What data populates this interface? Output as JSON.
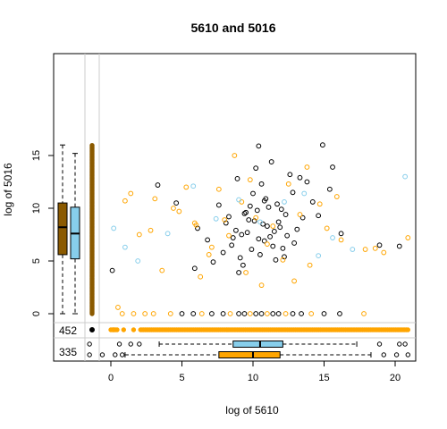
{
  "chart_data": {
    "type": "scatter",
    "title": "5610  and 5016",
    "xlabel": "log of 5610",
    "ylabel": "log of 5016",
    "xlim": [
      -3.7,
      21.5
    ],
    "ylim": [
      -0.6,
      16.6
    ],
    "x_ticks": [
      0,
      5,
      10,
      15,
      20
    ],
    "y_ticks": [
      0,
      5,
      10,
      15
    ],
    "grid": false,
    "missing_counts": [
      {
        "value": "452",
        "color": "#FFA500"
      },
      {
        "value": "335",
        "color": "#333333"
      }
    ],
    "series": [
      {
        "color": "#000000",
        "x": [
          9.2,
          10.1,
          10.8,
          11.5,
          12.3,
          8.5,
          9.8,
          10.4,
          11.0,
          12.8,
          13.5,
          7.9,
          9.4,
          10.6,
          11.7,
          12.1,
          8.8,
          9.9,
          10.3,
          11.2,
          13.1,
          14.2,
          7.2,
          8.1,
          9.6,
          10.9,
          11.9,
          12.6,
          9.1,
          10.0,
          10.7,
          11.4,
          8.3,
          9.3,
          10.2,
          11.1,
          12.4,
          13.8,
          15.4,
          6.8,
          8.9,
          9.7,
          10.5,
          11.3,
          12.0,
          12.9,
          14.6,
          7.6,
          9.0,
          10.4,
          11.6,
          16.2,
          18.9,
          5.9,
          3.3,
          4.6,
          6.1,
          20.3,
          0.1,
          14.9,
          15.6,
          11.8,
          9.5,
          8.6,
          10.8,
          12.2,
          13.3
        ],
        "y": [
          7.5,
          8.8,
          6.9,
          7.8,
          9.4,
          6.5,
          10.2,
          7.1,
          8.3,
          11.5,
          9.1,
          5.8,
          9.5,
          12.3,
          10.4,
          6.2,
          7.9,
          6.1,
          9.8,
          7.3,
          8.0,
          10.6,
          4.9,
          8.6,
          7.7,
          10.9,
          8.2,
          13.2,
          5.3,
          11.4,
          8.5,
          6.4,
          9.2,
          4.6,
          13.8,
          10.1,
          7.4,
          12.5,
          11.8,
          7.0,
          12.8,
          8.9,
          5.6,
          14.4,
          9.9,
          6.7,
          9.3,
          10.3,
          3.9,
          15.9,
          5.1,
          7.6,
          6.5,
          4.3,
          12.2,
          10.5,
          8.1,
          6.4,
          4.1,
          16.0,
          13.9,
          8.7,
          9.6,
          7.2,
          10.7,
          5.4,
          12.9
        ]
      },
      {
        "color": "#FFA500",
        "x": [
          5.3,
          7.1,
          9.2,
          11.4,
          14.0,
          3.1,
          6.3,
          8.0,
          12.5,
          16.2,
          2.0,
          4.4,
          10.6,
          13.3,
          17.9,
          1.4,
          6.9,
          9.8,
          15.2,
          20.9,
          3.6,
          5.9,
          8.7,
          12.1,
          14.7,
          0.5,
          2.8,
          7.6,
          11.0,
          18.6,
          4.8,
          9.5,
          13.8,
          19.2,
          6.0,
          10.2,
          15.9,
          1.0,
          8.3,
          12.9
        ],
        "y": [
          12.0,
          6.3,
          10.6,
          8.3,
          4.6,
          10.9,
          3.5,
          8.9,
          12.3,
          7.0,
          7.5,
          10.0,
          2.7,
          9.4,
          6.1,
          11.4,
          5.6,
          12.7,
          8.1,
          7.2,
          4.1,
          8.6,
          15.0,
          5.1,
          10.4,
          0.6,
          7.9,
          11.8,
          6.6,
          6.2,
          9.7,
          3.9,
          13.9,
          5.8,
          8.4,
          9.1,
          11.1,
          10.7,
          7.4,
          3.1
        ]
      },
      {
        "color": "#87CEEB",
        "x": [
          0.2,
          1.0,
          1.9,
          5.8,
          7.4,
          9.0,
          10.5,
          12.2,
          13.6,
          15.6,
          17.0,
          20.7,
          4.0,
          14.6
        ],
        "y": [
          8.1,
          6.3,
          5.0,
          12.1,
          9.0,
          10.8,
          8.7,
          10.6,
          11.4,
          7.2,
          6.1,
          13.0,
          7.6,
          5.5
        ]
      }
    ],
    "x_missing_strip": {
      "orange_y": [
        2.0,
        4.9,
        6.1,
        7.4,
        8.1,
        9.0,
        9.9,
        10.6,
        11.3,
        12.0,
        12.9,
        13.7,
        14.6,
        15.2,
        15.9
      ],
      "summary": "dense brown points along the left strip from 0 to 16"
    },
    "boxplots": [
      {
        "axis": "y",
        "color": "#8B5A00",
        "min": 0.0,
        "q1": 5.6,
        "median": 8.2,
        "q3": 10.5,
        "max": 16.0
      },
      {
        "axis": "y",
        "color": "#87CEEB",
        "min": 0.0,
        "q1": 5.2,
        "median": 7.6,
        "q3": 10.1,
        "max": 15.2
      },
      {
        "axis": "x",
        "color": "#87CEEB",
        "min": 3.4,
        "q1": 8.6,
        "median": 10.5,
        "q3": 12.1,
        "max": 17.3
      },
      {
        "axis": "x",
        "color": "#FFA500",
        "min": 1.0,
        "q1": 7.6,
        "median": 10.0,
        "q3": 11.9,
        "max": 18.3
      }
    ]
  }
}
